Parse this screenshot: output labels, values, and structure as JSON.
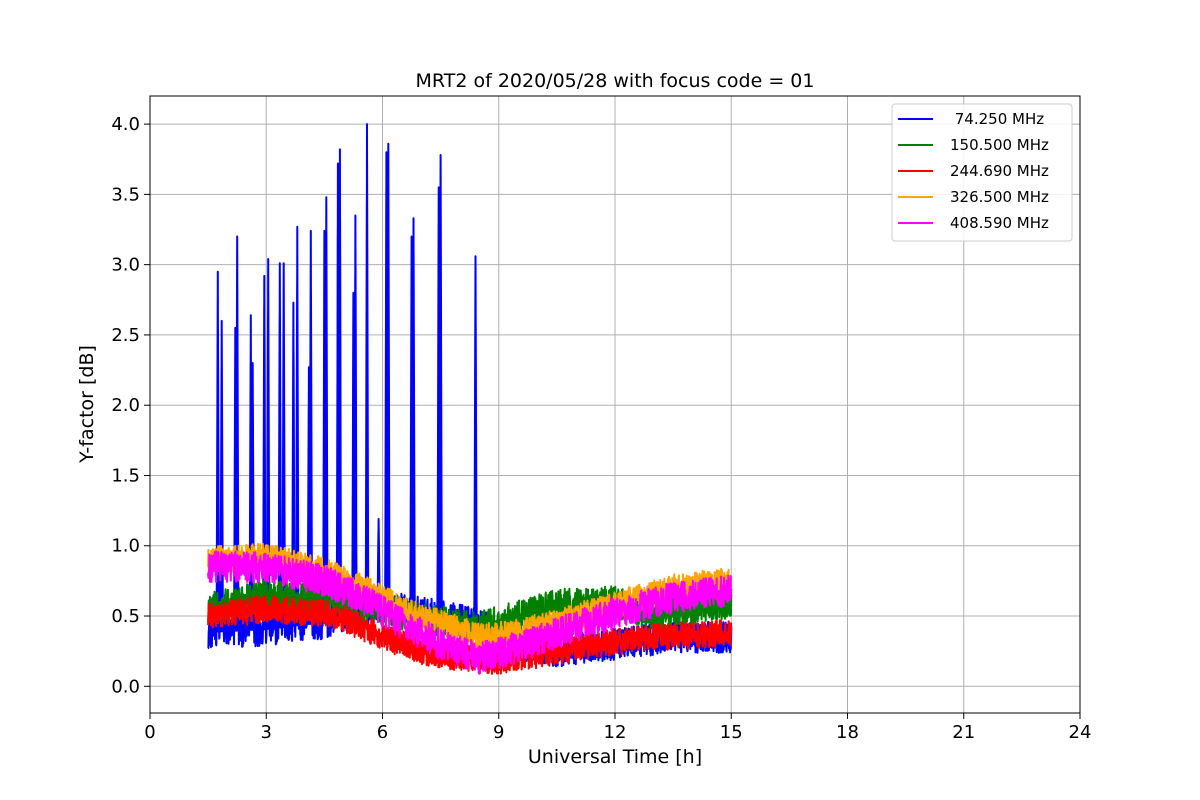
{
  "chart_data": {
    "type": "line",
    "title": "MRT2 of 2020/05/28 with focus code = 01",
    "xlabel": "Universal Time [h]",
    "ylabel": "Y-factor [dB]",
    "xlim": [
      0,
      24
    ],
    "ylim": [
      -0.19,
      4.2
    ],
    "xticks": [
      0,
      3,
      6,
      9,
      12,
      15,
      18,
      21,
      24
    ],
    "xtick_labels": [
      "0",
      "3",
      "6",
      "9",
      "12",
      "15",
      "18",
      "21",
      "24"
    ],
    "yticks": [
      0.0,
      0.5,
      1.0,
      1.5,
      2.0,
      2.5,
      3.0,
      3.5,
      4.0
    ],
    "ytick_labels": [
      "0.0",
      "0.5",
      "1.0",
      "1.5",
      "2.0",
      "2.5",
      "3.0",
      "3.5",
      "4.0"
    ],
    "grid": true,
    "legend_position": "top-right",
    "x_range_data": [
      1.5,
      15.0
    ],
    "series": [
      {
        "name": " 74.250 MHz",
        "color": "#0000ff",
        "noise": 0.07,
        "baseline": [
          [
            1.5,
            0.38
          ],
          [
            3.0,
            0.4
          ],
          [
            4.5,
            0.45
          ],
          [
            5.5,
            0.55
          ],
          [
            6.5,
            0.55
          ],
          [
            7.5,
            0.5
          ],
          [
            8.5,
            0.45
          ],
          [
            9.5,
            0.3
          ],
          [
            10.5,
            0.25
          ],
          [
            12.0,
            0.3
          ],
          [
            13.5,
            0.35
          ],
          [
            15.0,
            0.35
          ]
        ],
        "spikes": [
          [
            1.75,
            2.95
          ],
          [
            1.85,
            2.6
          ],
          [
            2.2,
            2.55
          ],
          [
            2.25,
            3.2
          ],
          [
            2.6,
            2.64
          ],
          [
            2.65,
            2.3
          ],
          [
            2.95,
            2.92
          ],
          [
            3.05,
            3.04
          ],
          [
            3.35,
            3.01
          ],
          [
            3.45,
            3.01
          ],
          [
            3.7,
            2.73
          ],
          [
            3.8,
            3.27
          ],
          [
            4.1,
            2.27
          ],
          [
            4.15,
            3.24
          ],
          [
            4.5,
            3.24
          ],
          [
            4.55,
            3.48
          ],
          [
            4.85,
            3.72
          ],
          [
            4.9,
            3.82
          ],
          [
            5.25,
            2.8
          ],
          [
            5.3,
            3.35
          ],
          [
            5.6,
            4.0
          ],
          [
            5.9,
            1.19
          ],
          [
            6.1,
            3.8
          ],
          [
            6.15,
            3.86
          ],
          [
            6.75,
            3.2
          ],
          [
            6.8,
            3.33
          ],
          [
            7.45,
            3.55
          ],
          [
            7.5,
            3.78
          ],
          [
            8.4,
            3.06
          ]
        ]
      },
      {
        "name": "150.500 MHz",
        "color": "#008000",
        "noise": 0.07,
        "baseline": [
          [
            1.5,
            0.55
          ],
          [
            3.0,
            0.65
          ],
          [
            4.5,
            0.6
          ],
          [
            6.0,
            0.55
          ],
          [
            7.0,
            0.48
          ],
          [
            8.5,
            0.42
          ],
          [
            9.5,
            0.5
          ],
          [
            10.5,
            0.58
          ],
          [
            12.0,
            0.6
          ],
          [
            13.0,
            0.5
          ],
          [
            14.0,
            0.55
          ],
          [
            15.0,
            0.6
          ]
        ],
        "spikes": []
      },
      {
        "name": "244.690 MHz",
        "color": "#ff0000",
        "noise": 0.06,
        "baseline": [
          [
            1.5,
            0.5
          ],
          [
            3.0,
            0.55
          ],
          [
            4.5,
            0.52
          ],
          [
            5.0,
            0.48
          ],
          [
            6.0,
            0.35
          ],
          [
            7.0,
            0.25
          ],
          [
            8.0,
            0.2
          ],
          [
            9.0,
            0.18
          ],
          [
            10.0,
            0.22
          ],
          [
            11.5,
            0.3
          ],
          [
            13.0,
            0.35
          ],
          [
            15.0,
            0.38
          ]
        ],
        "spikes": []
      },
      {
        "name": "326.500 MHz",
        "color": "#ffa500",
        "noise": 0.06,
        "baseline": [
          [
            1.5,
            0.9
          ],
          [
            3.0,
            0.92
          ],
          [
            4.5,
            0.82
          ],
          [
            5.5,
            0.7
          ],
          [
            6.5,
            0.55
          ],
          [
            7.5,
            0.45
          ],
          [
            8.5,
            0.35
          ],
          [
            9.5,
            0.38
          ],
          [
            10.5,
            0.45
          ],
          [
            12.0,
            0.58
          ],
          [
            13.5,
            0.7
          ],
          [
            15.0,
            0.75
          ]
        ],
        "spikes": []
      },
      {
        "name": "408.590 MHz",
        "color": "#ff00ff",
        "noise": 0.07,
        "baseline": [
          [
            1.5,
            0.85
          ],
          [
            3.0,
            0.85
          ],
          [
            4.5,
            0.75
          ],
          [
            5.5,
            0.62
          ],
          [
            6.5,
            0.45
          ],
          [
            7.5,
            0.3
          ],
          [
            8.5,
            0.2
          ],
          [
            9.5,
            0.28
          ],
          [
            10.5,
            0.38
          ],
          [
            12.0,
            0.52
          ],
          [
            13.5,
            0.63
          ],
          [
            15.0,
            0.68
          ]
        ],
        "spikes": []
      }
    ]
  }
}
